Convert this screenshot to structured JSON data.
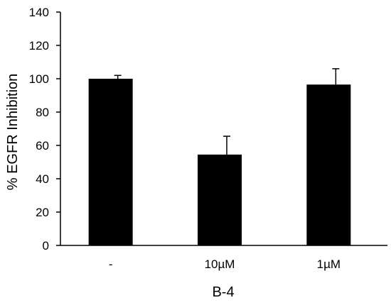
{
  "chart_data": {
    "type": "bar",
    "categories": [
      "-",
      "10µM",
      "1µM"
    ],
    "values": [
      100,
      54.5,
      96.5
    ],
    "errors": [
      2,
      11,
      9.5
    ],
    "xlabel": "B-4",
    "ylabel": "% EGFR Inhibition",
    "ylim": [
      0,
      140
    ],
    "yticks": [
      "0",
      "20",
      "40",
      "60",
      "80",
      "100",
      "120",
      "140"
    ],
    "grid": false,
    "bar_color": "#000000"
  }
}
